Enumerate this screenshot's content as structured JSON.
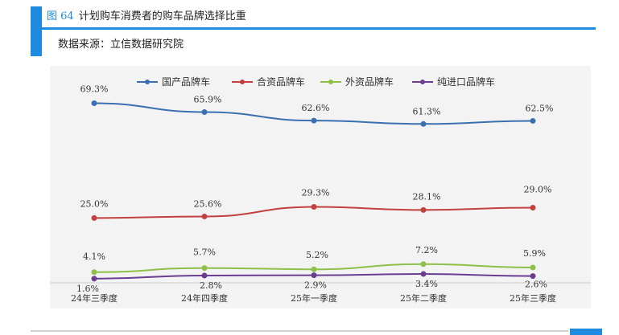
{
  "header": {
    "figure_number": "图 64",
    "title": "计划购车消费者的购车品牌选择比重",
    "source": "数据来源：立信数据研究院"
  },
  "colors": {
    "accent": "#1e8be0",
    "panel": "#f3f3f3"
  },
  "chart_data": {
    "type": "line",
    "title": "",
    "xlabel": "",
    "ylabel": "",
    "categories": [
      "24年三季度",
      "24年四季度",
      "25年一季度",
      "25年二季度",
      "25年三季度"
    ],
    "series": [
      {
        "name": "国产品牌车",
        "color": "#3a6fb0",
        "values": [
          69.3,
          65.9,
          62.6,
          61.3,
          62.5
        ],
        "labels": [
          "69.3%",
          "65.9%",
          "62.6%",
          "61.3%",
          "62.5%"
        ]
      },
      {
        "name": "合资品牌车",
        "color": "#c0413d",
        "values": [
          25.0,
          25.6,
          29.3,
          28.1,
          29.0
        ],
        "labels": [
          "25.0%",
          "25.6%",
          "29.3%",
          "28.1%",
          "29.0%"
        ]
      },
      {
        "name": "外资品牌车",
        "color": "#8ec04a",
        "values": [
          4.1,
          5.7,
          5.2,
          7.2,
          5.9
        ],
        "labels": [
          "4.1%",
          "5.7%",
          "5.2%",
          "7.2%",
          "5.9%"
        ]
      },
      {
        "name": "纯进口品牌车",
        "color": "#6b3d91",
        "values": [
          1.6,
          2.8,
          2.9,
          3.4,
          2.6
        ],
        "labels": [
          "1.6%",
          "2.8%",
          "2.9%",
          "3.4%",
          "2.6%"
        ]
      }
    ],
    "ylim": [
      0,
      80
    ],
    "grid": false,
    "legend": "top-center"
  }
}
